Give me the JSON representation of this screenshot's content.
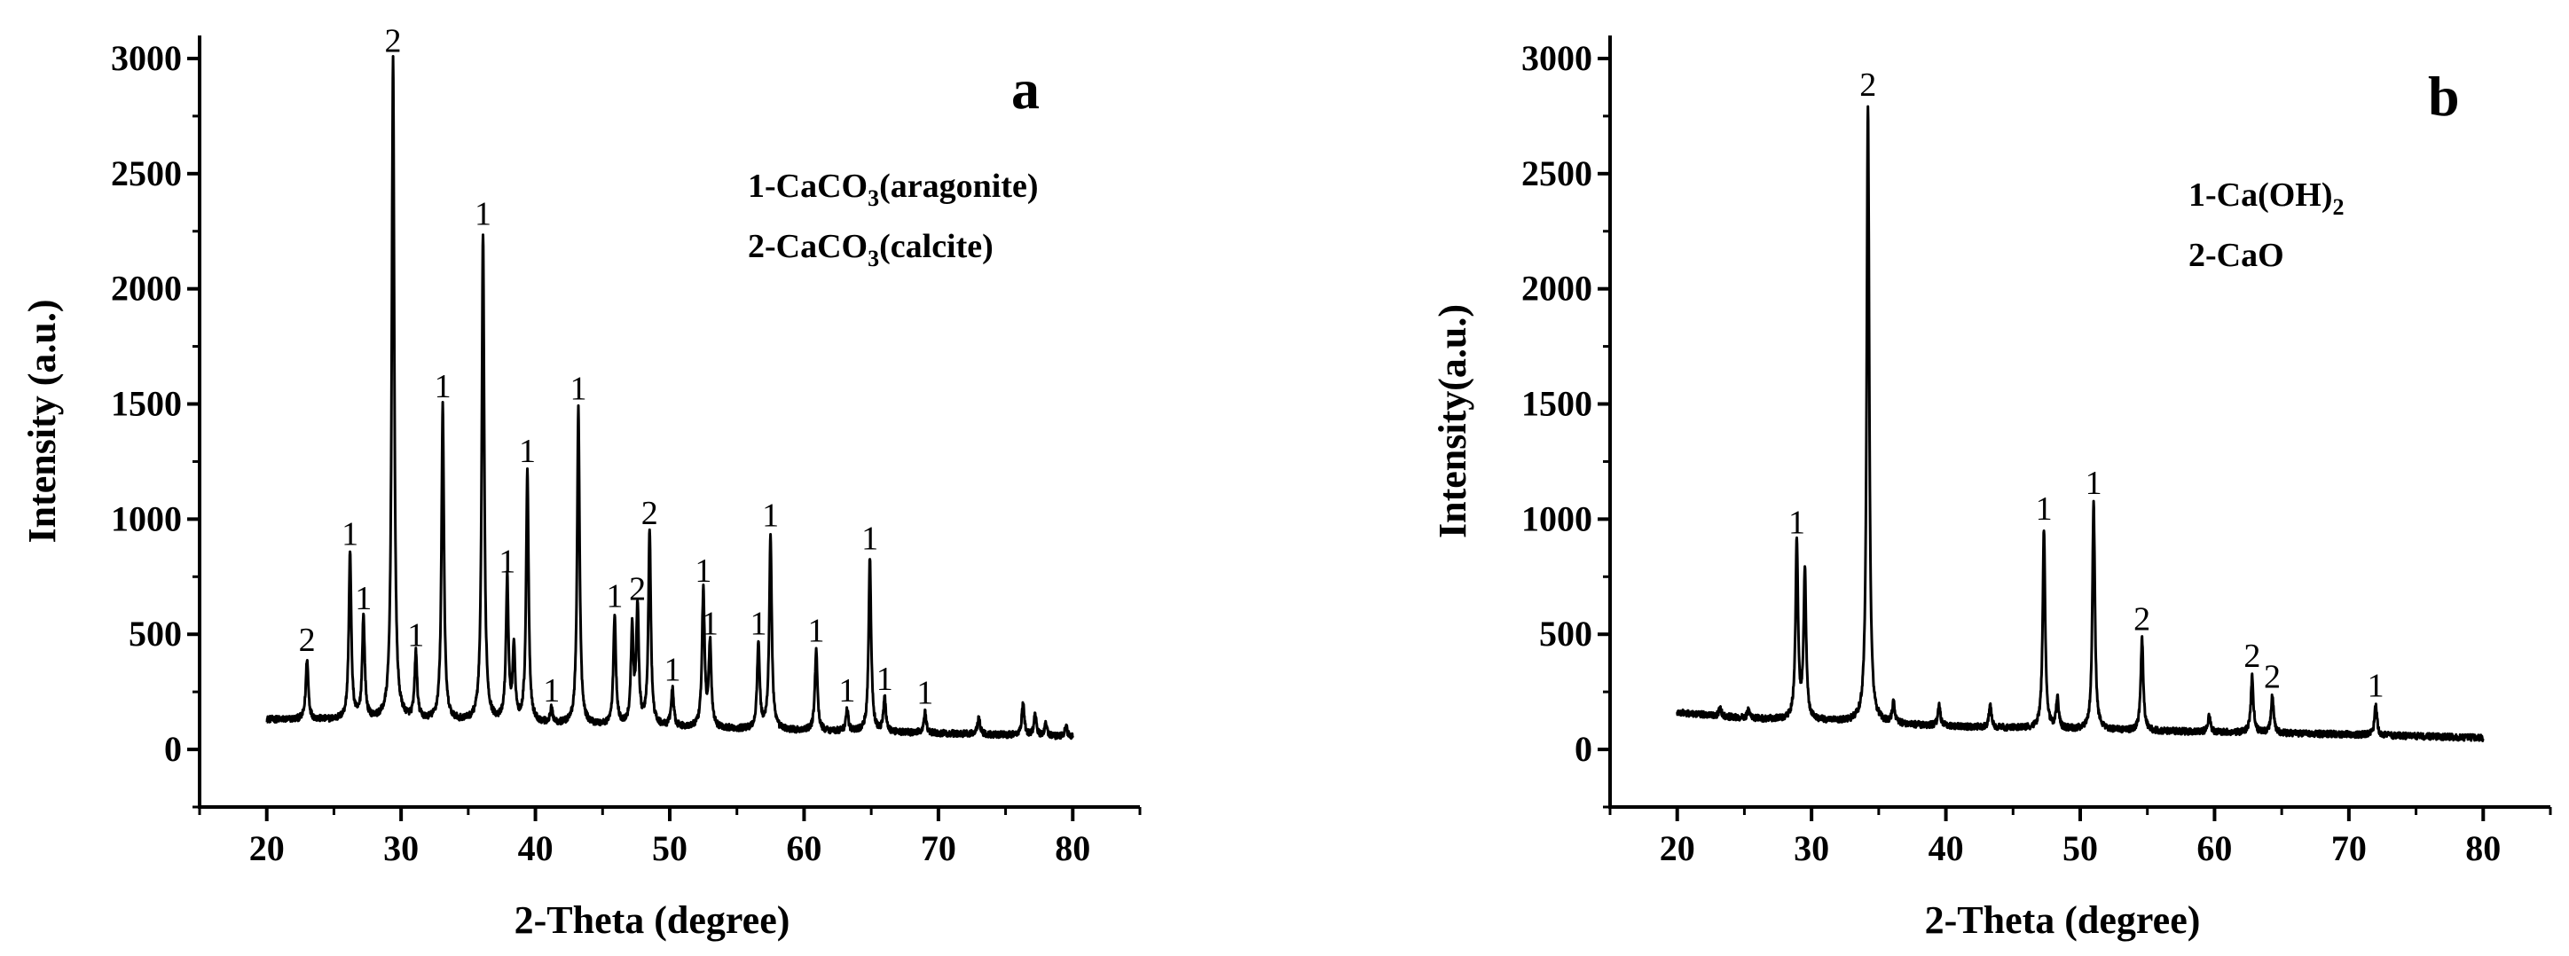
{
  "chart_data": [
    {
      "type": "line",
      "panel": "a",
      "xlabel": "2-Theta (degree)",
      "ylabel": "Intensity (a.u.)",
      "xlim": [
        15,
        85
      ],
      "ylim": [
        -250,
        3100
      ],
      "xticks": [
        20,
        30,
        40,
        50,
        60,
        70,
        80
      ],
      "yticks": [
        0,
        500,
        1000,
        1500,
        2000,
        2500,
        3000
      ],
      "legend": [
        {
          "prefix": "1-CaCO",
          "sub": "3",
          "suffix": "(aragonite)"
        },
        {
          "prefix": "2-CaCO",
          "sub": "3",
          "suffix": "(calcite)"
        }
      ],
      "baseline": [
        [
          20,
          130
        ],
        [
          30,
          125
        ],
        [
          40,
          110
        ],
        [
          50,
          95
        ],
        [
          60,
          80
        ],
        [
          70,
          70
        ],
        [
          80,
          55
        ]
      ],
      "peaks": [
        {
          "x": 23.0,
          "y": 390,
          "label": "2"
        },
        {
          "x": 26.2,
          "y": 850,
          "label": "1"
        },
        {
          "x": 27.2,
          "y": 570,
          "label": "1"
        },
        {
          "x": 29.4,
          "y": 2990,
          "label": "2"
        },
        {
          "x": 31.1,
          "y": 410,
          "label": "1"
        },
        {
          "x": 33.1,
          "y": 1490,
          "label": "1"
        },
        {
          "x": 36.1,
          "y": 2240,
          "label": "1"
        },
        {
          "x": 37.9,
          "y": 730,
          "label": "1"
        },
        {
          "x": 38.4,
          "y": 420,
          "label": ""
        },
        {
          "x": 39.4,
          "y": 1210,
          "label": "1"
        },
        {
          "x": 41.2,
          "y": 170,
          "label": "1"
        },
        {
          "x": 43.2,
          "y": 1480,
          "label": "1"
        },
        {
          "x": 45.9,
          "y": 580,
          "label": "1"
        },
        {
          "x": 47.2,
          "y": 510,
          "label": ""
        },
        {
          "x": 47.6,
          "y": 610,
          "label": "2"
        },
        {
          "x": 48.5,
          "y": 940,
          "label": "2"
        },
        {
          "x": 50.2,
          "y": 260,
          "label": "1"
        },
        {
          "x": 52.5,
          "y": 690,
          "label": "1"
        },
        {
          "x": 53.0,
          "y": 460,
          "label": "1"
        },
        {
          "x": 56.6,
          "y": 460,
          "label": "1"
        },
        {
          "x": 57.5,
          "y": 930,
          "label": "1"
        },
        {
          "x": 60.9,
          "y": 430,
          "label": "1"
        },
        {
          "x": 63.2,
          "y": 170,
          "label": "1"
        },
        {
          "x": 64.9,
          "y": 830,
          "label": "1"
        },
        {
          "x": 66.0,
          "y": 220,
          "label": "1"
        },
        {
          "x": 69.0,
          "y": 160,
          "label": "1"
        },
        {
          "x": 73.0,
          "y": 140,
          "label": ""
        },
        {
          "x": 76.3,
          "y": 200,
          "label": ""
        },
        {
          "x": 77.2,
          "y": 150,
          "label": ""
        },
        {
          "x": 78.0,
          "y": 110,
          "label": ""
        },
        {
          "x": 79.5,
          "y": 100,
          "label": ""
        }
      ]
    },
    {
      "type": "line",
      "panel": "b",
      "xlabel": "2-Theta (degree)",
      "ylabel": "Intensity(a.u.)",
      "xlim": [
        15,
        85
      ],
      "ylim": [
        -250,
        3100
      ],
      "xticks": [
        20,
        30,
        40,
        50,
        60,
        70,
        80
      ],
      "yticks": [
        0,
        500,
        1000,
        1500,
        2000,
        2500,
        3000
      ],
      "legend": [
        {
          "prefix": "1-Ca(OH)",
          "sub": "2",
          "suffix": ""
        },
        {
          "prefix": "2-CaO",
          "sub": "",
          "suffix": ""
        }
      ],
      "baseline": [
        [
          20,
          160
        ],
        [
          25,
          135
        ],
        [
          30,
          125
        ],
        [
          40,
          100
        ],
        [
          50,
          85
        ],
        [
          60,
          75
        ],
        [
          70,
          65
        ],
        [
          80,
          50
        ]
      ],
      "peaks": [
        {
          "x": 23.2,
          "y": 180,
          "label": ""
        },
        {
          "x": 25.3,
          "y": 170,
          "label": ""
        },
        {
          "x": 28.9,
          "y": 900,
          "label": "1"
        },
        {
          "x": 29.5,
          "y": 770,
          "label": ""
        },
        {
          "x": 34.2,
          "y": 2800,
          "label": "2"
        },
        {
          "x": 36.1,
          "y": 200,
          "label": ""
        },
        {
          "x": 39.5,
          "y": 190,
          "label": ""
        },
        {
          "x": 43.3,
          "y": 190,
          "label": ""
        },
        {
          "x": 47.3,
          "y": 960,
          "label": "1"
        },
        {
          "x": 48.3,
          "y": 220,
          "label": ""
        },
        {
          "x": 51.0,
          "y": 1070,
          "label": "1"
        },
        {
          "x": 54.6,
          "y": 480,
          "label": "2"
        },
        {
          "x": 59.6,
          "y": 150,
          "label": ""
        },
        {
          "x": 62.8,
          "y": 320,
          "label": "2"
        },
        {
          "x": 64.3,
          "y": 230,
          "label": "2"
        },
        {
          "x": 72.0,
          "y": 190,
          "label": "1"
        }
      ]
    }
  ]
}
